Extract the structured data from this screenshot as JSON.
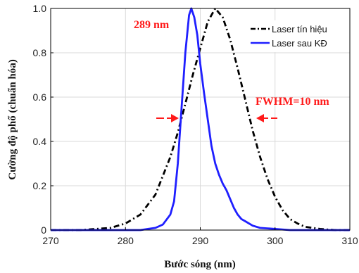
{
  "chart_data": {
    "type": "line",
    "xlabel": "Bước sóng (nm)",
    "ylabel": "Cường độ phổ (chuẩn hóa)",
    "xlim": [
      270,
      310
    ],
    "ylim": [
      0,
      1
    ],
    "xticks": [
      270,
      280,
      290,
      300,
      310
    ],
    "yticks": [
      0,
      0.2,
      0.4,
      0.6,
      0.8,
      1.0
    ],
    "xtick_labels": [
      "270",
      "280",
      "290",
      "300",
      "310"
    ],
    "ytick_labels": [
      "0",
      "0.2",
      "0.4",
      "0.6",
      "0.8",
      "1.0"
    ],
    "grid": true,
    "legend_position": "top-right",
    "series": [
      {
        "name": "Laser tín hiệu",
        "color": "#000000",
        "style": "dash-dot",
        "points": [
          [
            270,
            0.0
          ],
          [
            274,
            0.0
          ],
          [
            276,
            0.005
          ],
          [
            278,
            0.01
          ],
          [
            280,
            0.03
          ],
          [
            282,
            0.07
          ],
          [
            284,
            0.16
          ],
          [
            286,
            0.33
          ],
          [
            287,
            0.44
          ],
          [
            288,
            0.57
          ],
          [
            289,
            0.7
          ],
          [
            290,
            0.82
          ],
          [
            291,
            0.94
          ],
          [
            292,
            1.0
          ],
          [
            293,
            0.96
          ],
          [
            294,
            0.86
          ],
          [
            295,
            0.73
          ],
          [
            296,
            0.59
          ],
          [
            297,
            0.45
          ],
          [
            298,
            0.33
          ],
          [
            299,
            0.23
          ],
          [
            300,
            0.15
          ],
          [
            301,
            0.09
          ],
          [
            302,
            0.05
          ],
          [
            303,
            0.03
          ],
          [
            304,
            0.015
          ],
          [
            306,
            0.005
          ],
          [
            308,
            0.0
          ],
          [
            310,
            0.0
          ]
        ]
      },
      {
        "name": "Laser sau KĐ",
        "color": "#1f1fff",
        "style": "solid",
        "points": [
          [
            270,
            0.0
          ],
          [
            282,
            0.0
          ],
          [
            283,
            0.005
          ],
          [
            284,
            0.01
          ],
          [
            285,
            0.025
          ],
          [
            286,
            0.07
          ],
          [
            286.5,
            0.13
          ],
          [
            287,
            0.3
          ],
          [
            287.5,
            0.55
          ],
          [
            288,
            0.8
          ],
          [
            288.5,
            0.97
          ],
          [
            288.8,
            1.0
          ],
          [
            289.2,
            0.96
          ],
          [
            289.6,
            0.88
          ],
          [
            290,
            0.75
          ],
          [
            290.5,
            0.62
          ],
          [
            291,
            0.5
          ],
          [
            291.5,
            0.38
          ],
          [
            292,
            0.3
          ],
          [
            292.5,
            0.25
          ],
          [
            293,
            0.21
          ],
          [
            293.5,
            0.18
          ],
          [
            294,
            0.14
          ],
          [
            294.5,
            0.1
          ],
          [
            295,
            0.07
          ],
          [
            295.5,
            0.05
          ],
          [
            296,
            0.04
          ],
          [
            297,
            0.02
          ],
          [
            298,
            0.01
          ],
          [
            300,
            0.005
          ],
          [
            302,
            0.0
          ],
          [
            310,
            0.0
          ]
        ]
      }
    ],
    "annotations": [
      {
        "text": "289 nm",
        "color": "#ff1a1a"
      },
      {
        "text": "FWHM=10 nm",
        "color": "#ff1a1a"
      }
    ]
  }
}
